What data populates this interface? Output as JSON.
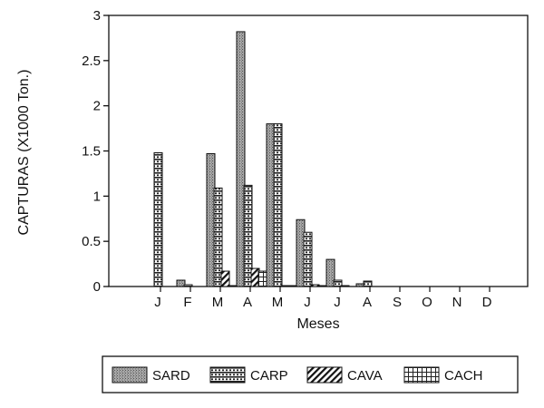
{
  "chart_data": {
    "type": "bar",
    "categories": [
      "J",
      "F",
      "M",
      "A",
      "M",
      "J",
      "J",
      "A",
      "S",
      "O",
      "N",
      "D"
    ],
    "series": [
      {
        "name": "SARD",
        "values": [
          0,
          0.07,
          1.47,
          2.82,
          1.8,
          0.74,
          0.3,
          0.03,
          0,
          0,
          0,
          0
        ]
      },
      {
        "name": "CARP",
        "values": [
          1.48,
          0.02,
          1.09,
          1.12,
          1.8,
          0.6,
          0.07,
          0.06,
          0,
          0,
          0,
          0
        ]
      },
      {
        "name": "CAVA",
        "values": [
          0,
          0,
          0.17,
          0.2,
          0.01,
          0.02,
          0.01,
          0,
          0,
          0,
          0,
          0
        ]
      },
      {
        "name": "CACH",
        "values": [
          0,
          0,
          0.01,
          0.17,
          0.01,
          0.01,
          0,
          0,
          0,
          0,
          0,
          0
        ]
      }
    ],
    "yticks": [
      "0",
      "0.5",
      "1",
      "1.5",
      "2",
      "2.5",
      "3"
    ],
    "ylim": [
      0,
      3
    ],
    "xlabel": "Meses",
    "ylabel": "CAPTURAS (X1000 Ton.)",
    "legend_position": "bottom",
    "grid": false,
    "colors": {
      "bar_fill": "#9a9a9a",
      "ink": "#111111",
      "background": "#ffffff"
    }
  }
}
